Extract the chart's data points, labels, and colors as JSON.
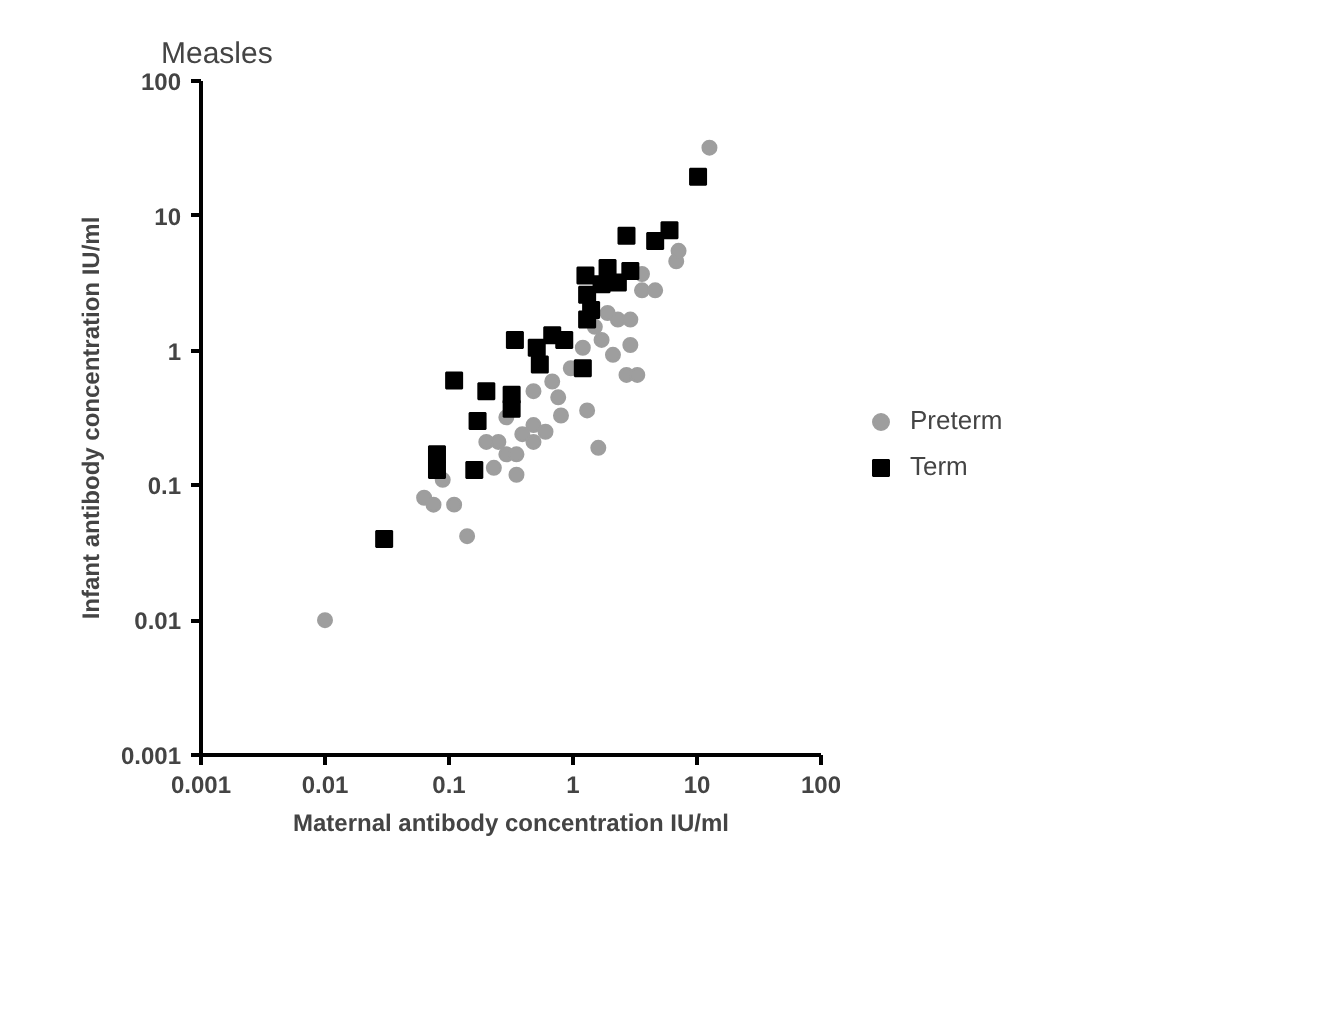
{
  "chart_data": {
    "type": "scatter",
    "title": "Measles",
    "xlabel": "Maternal antibody concentration IU/ml",
    "ylabel": "Infant antibody concentration IU/ml",
    "log": "xy",
    "xlim": [
      0.001,
      100
    ],
    "ylim": [
      0.001,
      100
    ],
    "xticks": [
      0.001,
      0.01,
      0.1,
      1,
      10,
      100
    ],
    "yticks": [
      0.001,
      0.01,
      0.1,
      1,
      10,
      100
    ],
    "grid": false,
    "legend": "right",
    "series": [
      {
        "name": "Preterm",
        "color": "#9e9e9e",
        "marker": "circle",
        "x": [
          0.01,
          0.14,
          0.11,
          0.063,
          0.075,
          0.089,
          0.23,
          0.29,
          0.35,
          0.25,
          0.39,
          0.48,
          0.6,
          0.8,
          1.6,
          1.3,
          0.48,
          0.68,
          0.96,
          1.2,
          1.7,
          2.1,
          2.7,
          3.3,
          2.9,
          2.9,
          2.3,
          3.6,
          4.6,
          6.8,
          12.6,
          7.1,
          1.9,
          1.5,
          0.76,
          0.35,
          0.29,
          0.2,
          0.48,
          3.6
        ],
        "values": [
          0.01,
          0.042,
          0.072,
          0.081,
          0.072,
          0.11,
          0.135,
          0.17,
          0.12,
          0.21,
          0.24,
          0.28,
          0.25,
          0.33,
          0.19,
          0.36,
          0.5,
          0.59,
          0.74,
          1.05,
          1.2,
          0.93,
          0.66,
          0.66,
          1.1,
          1.7,
          1.7,
          2.8,
          2.8,
          4.6,
          32,
          5.5,
          1.9,
          1.5,
          0.45,
          0.17,
          0.32,
          0.21,
          0.21,
          3.7
        ]
      },
      {
        "name": "Term",
        "color": "#000000",
        "marker": "square",
        "x": [
          0.03,
          0.08,
          0.08,
          0.16,
          0.17,
          0.11,
          0.2,
          0.32,
          0.32,
          0.34,
          0.51,
          0.54,
          0.68,
          0.85,
          1.2,
          1.26,
          1.3,
          1.4,
          1.9,
          2.3,
          2.9,
          1.7,
          2.7,
          4.6,
          6,
          10.2,
          1.3
        ],
        "values": [
          0.04,
          0.17,
          0.13,
          0.13,
          0.3,
          0.6,
          0.5,
          0.47,
          0.37,
          1.2,
          1.05,
          0.79,
          1.3,
          1.2,
          0.74,
          3.6,
          2.6,
          2.0,
          4.1,
          3.2,
          3.9,
          3.1,
          7.1,
          6.5,
          7.8,
          19.5,
          1.7
        ]
      }
    ]
  }
}
